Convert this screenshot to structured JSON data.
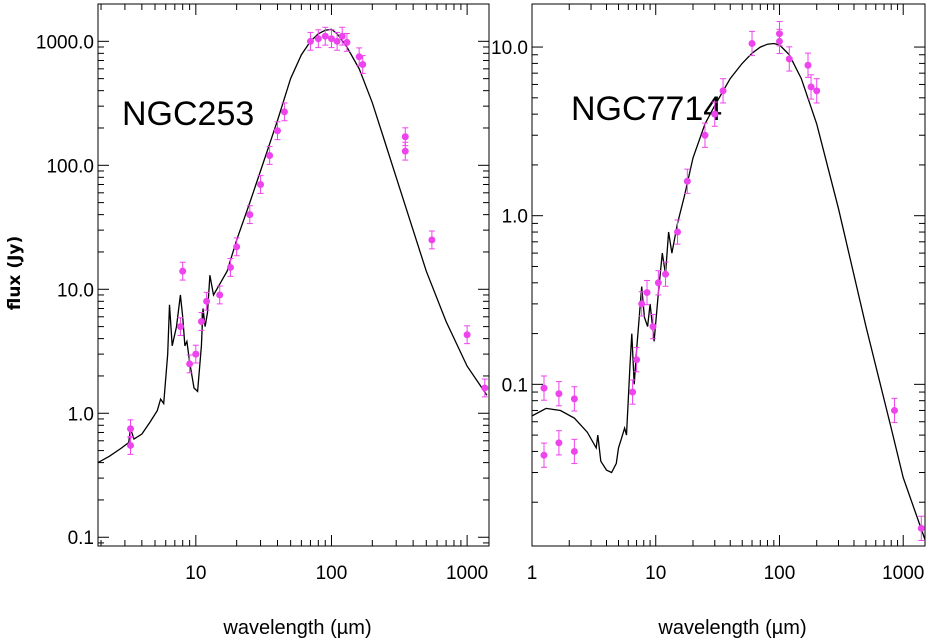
{
  "figure": {
    "ylabel": "flux (Jy)",
    "colors": {
      "model": "#000000",
      "data": "#ee44ee"
    }
  },
  "chart_data": [
    {
      "type": "scatter",
      "title": "NGC253",
      "xlabel": "wavelength (µm)",
      "ylabel": "flux (Jy)",
      "x_scale": "log",
      "y_scale": "log",
      "xlim": [
        1.9,
        1450
      ],
      "ylim": [
        0.085,
        2000
      ],
      "x_ticks": [
        10,
        100,
        1000
      ],
      "x_tick_labels": [
        "10",
        "100",
        "1000"
      ],
      "y_ticks": [
        0.1,
        1,
        10,
        100,
        1000
      ],
      "y_tick_labels": [
        "0.1",
        "1.0",
        "10.0",
        "100.0",
        "1000.0"
      ],
      "series": [
        {
          "kind": "model",
          "x": [
            1.9,
            2.3,
            2.8,
            3.2,
            3.3,
            3.5,
            4,
            4.6,
            5.2,
            5.5,
            5.8,
            6.2,
            6.4,
            6.7,
            7.2,
            7.7,
            8.0,
            8.3,
            8.6,
            9.0,
            9.7,
            10.3,
            11.0,
            11.3,
            11.7,
            12.2,
            12.7,
            13.5,
            15,
            17,
            20,
            25,
            30,
            40,
            50,
            60,
            70,
            80,
            90,
            100,
            110,
            130,
            160,
            200,
            250,
            300,
            400,
            500,
            700,
            1000,
            1400
          ],
          "y": [
            0.4,
            0.45,
            0.52,
            0.58,
            0.75,
            0.62,
            0.68,
            0.85,
            1.05,
            1.3,
            1.2,
            3.0,
            7.5,
            3.5,
            5.0,
            9.0,
            6.0,
            3.5,
            3.8,
            2.6,
            1.6,
            1.5,
            3.5,
            7.0,
            5.0,
            6.5,
            13.0,
            9.0,
            11,
            14,
            25,
            50,
            90,
            230,
            500,
            780,
            1000,
            1150,
            1230,
            1250,
            1150,
            900,
            600,
            320,
            150,
            80,
            30,
            14,
            5.5,
            2.4,
            1.4
          ]
        },
        {
          "kind": "data",
          "x": [
            3.3,
            3.3,
            7.7,
            8.0,
            9.0,
            10.0,
            11.0,
            12.0,
            15,
            18,
            20,
            25,
            30,
            35,
            40,
            45,
            70,
            80,
            90,
            100,
            110,
            120,
            130,
            160,
            170,
            350,
            350,
            550,
            1000,
            1350
          ],
          "y": [
            0.55,
            0.75,
            5.0,
            14,
            2.5,
            3.0,
            5.5,
            8.0,
            9.0,
            15,
            22,
            40,
            70,
            120,
            190,
            270,
            1000,
            1050,
            1100,
            1050,
            1000,
            1100,
            980,
            750,
            650,
            170,
            130,
            25,
            4.3,
            1.6
          ]
        }
      ]
    },
    {
      "type": "scatter",
      "title": "NGC7714",
      "xlabel": "wavelength (µm)",
      "ylabel": "",
      "x_scale": "log",
      "y_scale": "log",
      "xlim": [
        1.0,
        1500
      ],
      "ylim": [
        0.011,
        18
      ],
      "x_ticks": [
        1,
        10,
        100,
        1000
      ],
      "x_tick_labels": [
        "1",
        "10",
        "100",
        "1000"
      ],
      "y_ticks": [
        0.1,
        1,
        10
      ],
      "y_tick_labels": [
        "0.1",
        "1.0",
        "10.0"
      ],
      "series": [
        {
          "kind": "model",
          "x": [
            1.0,
            1.3,
            1.7,
            2.2,
            2.8,
            3.3,
            3.4,
            3.6,
            4.0,
            4.4,
            4.8,
            5.0,
            5.3,
            5.6,
            5.8,
            6.2,
            6.4,
            6.7,
            7.0,
            7.7,
            8.1,
            8.6,
            9.0,
            9.7,
            10.5,
            11.3,
            12.0,
            12.7,
            13.5,
            15,
            17,
            20,
            25,
            30,
            40,
            50,
            60,
            70,
            80,
            90,
            100,
            120,
            150,
            200,
            300,
            500,
            800,
            1000,
            1500
          ],
          "y": [
            0.065,
            0.072,
            0.07,
            0.063,
            0.052,
            0.042,
            0.05,
            0.035,
            0.031,
            0.03,
            0.034,
            0.042,
            0.048,
            0.055,
            0.05,
            0.13,
            0.2,
            0.1,
            0.16,
            0.38,
            0.25,
            0.22,
            0.3,
            0.18,
            0.35,
            0.6,
            0.45,
            0.8,
            0.6,
            0.9,
            1.3,
            2.2,
            3.5,
            4.5,
            6.5,
            8.0,
            9.2,
            10.0,
            10.4,
            10.5,
            10.3,
            9.0,
            6.5,
            3.5,
            1.1,
            0.22,
            0.055,
            0.028,
            0.012
          ]
        },
        {
          "kind": "data",
          "x": [
            1.25,
            1.25,
            1.65,
            1.65,
            2.2,
            2.2,
            6.5,
            7.0,
            7.7,
            8.5,
            9.5,
            10.5,
            12.0,
            15,
            18,
            25,
            30,
            35,
            60,
            100,
            100,
            120,
            170,
            180,
            200,
            850,
            1400
          ],
          "y": [
            0.095,
            0.038,
            0.088,
            0.045,
            0.082,
            0.04,
            0.09,
            0.14,
            0.3,
            0.35,
            0.22,
            0.4,
            0.45,
            0.8,
            1.6,
            3.0,
            4.0,
            5.5,
            10.5,
            12.0,
            10.8,
            8.5,
            7.8,
            5.8,
            5.5,
            0.07,
            0.014
          ]
        }
      ]
    }
  ]
}
